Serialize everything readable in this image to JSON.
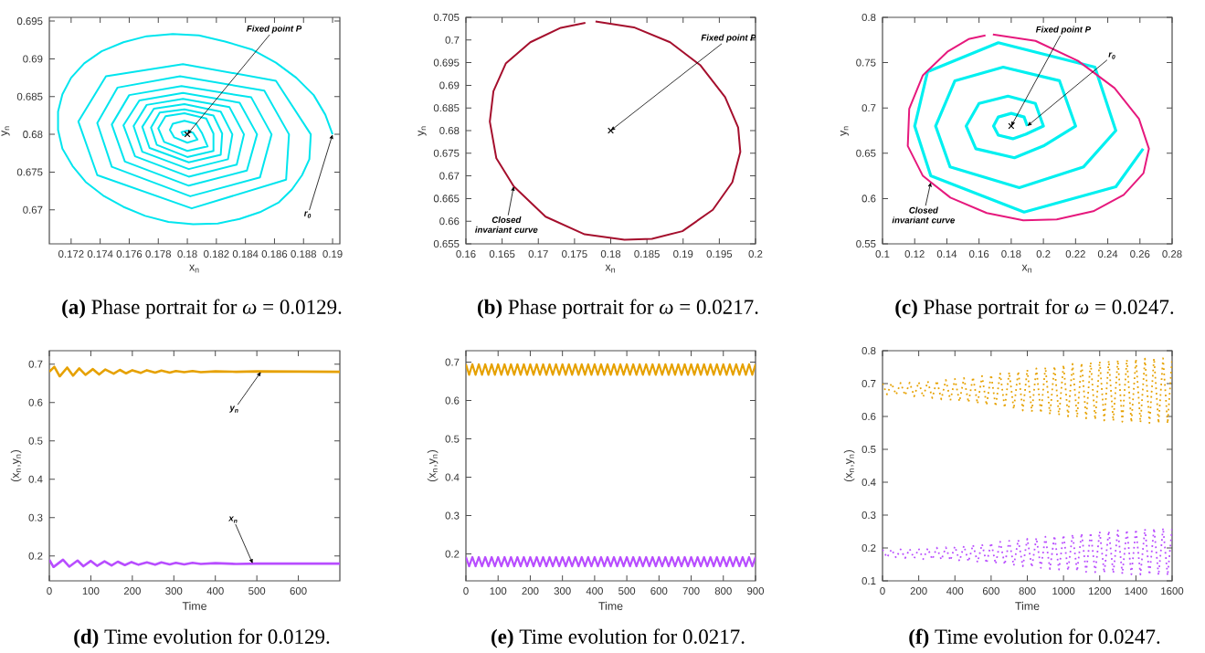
{
  "chart_data": [
    {
      "type": "line",
      "title": "**(a)** Phase portrait for *ω* = 0.0129.",
      "xlabel": "x$_{n}$",
      "ylabel": "y$_{n}$",
      "xlim": [
        0.1705,
        0.1905
      ],
      "ylim": [
        0.6655,
        0.6955
      ],
      "xticks": [
        0.172,
        0.174,
        0.176,
        0.178,
        0.18,
        0.182,
        0.184,
        0.186,
        0.188,
        0.19
      ],
      "yticks": [
        0.67,
        0.675,
        0.68,
        0.685,
        0.69,
        0.695
      ],
      "annotations": [
        {
          "text": "Fixed point P",
          "x": 0.18,
          "y": 0.68
        },
        {
          "text": "r$_{0}$",
          "x": 0.19,
          "y": 0.68
        }
      ],
      "series": [
        {
          "type": "scatter",
          "marker": "cross",
          "color": "#000000",
          "x": [
            0.18
          ],
          "values": [
            0.68
          ]
        },
        {
          "color": "#00e5ee",
          "x": [
            0.19,
            0.1895,
            0.1887,
            0.1875,
            0.1861,
            0.1845,
            0.1826,
            0.1808,
            0.179,
            0.1772,
            0.1756,
            0.1741,
            0.1729,
            0.172,
            0.1714,
            0.1711,
            0.1711,
            0.1714,
            0.1721,
            0.173,
            0.1742,
            0.1756,
            0.1771,
            0.1787,
            0.1804,
            0.1821,
            0.1836,
            0.185,
            0.1863,
            0.1872,
            0.1879,
            0.1884,
            0.1885,
            0.1861,
            0.1797,
            0.1744,
            0.1725,
            0.1738,
            0.1803,
            0.1868,
            0.187,
            0.1853,
            0.1795,
            0.1752,
            0.1738,
            0.1748,
            0.1802,
            0.185,
            0.1858,
            0.1844,
            0.1796,
            0.176,
            0.1748,
            0.1757,
            0.1801,
            0.1841,
            0.1848,
            0.1836,
            0.1797,
            0.1767,
            0.1756,
            0.1764,
            0.1801,
            0.1834,
            0.1839,
            0.1829,
            0.1797,
            0.1772,
            0.1763,
            0.1769,
            0.1801,
            0.1828,
            0.1831,
            0.1823,
            0.1798,
            0.1777,
            0.1769,
            0.1774,
            0.1801,
            0.1823,
            0.1824,
            0.1818,
            0.1798,
            0.1781,
            0.1775,
            0.1779,
            0.18,
            0.1818,
            0.1818,
            0.1813,
            0.1798,
            0.1785,
            0.178,
            0.1784,
            0.18,
            0.1814,
            0.181,
            0.1806,
            0.1798,
            0.179,
            0.1788,
            0.1791,
            0.18,
            0.1807,
            0.1804,
            0.18,
            0.1796,
            0.1797,
            0.18
          ],
          "values": [
            0.68,
            0.6826,
            0.6852,
            0.6875,
            0.6895,
            0.6912,
            0.6923,
            0.6931,
            0.6933,
            0.693,
            0.6922,
            0.691,
            0.6894,
            0.6875,
            0.6853,
            0.683,
            0.6806,
            0.6781,
            0.6758,
            0.6737,
            0.6719,
            0.6704,
            0.6692,
            0.6684,
            0.6681,
            0.6682,
            0.6688,
            0.6697,
            0.671,
            0.6727,
            0.6746,
            0.6767,
            0.68,
            0.6871,
            0.6893,
            0.6877,
            0.6817,
            0.6746,
            0.6702,
            0.674,
            0.68,
            0.6858,
            0.6877,
            0.6862,
            0.6815,
            0.6757,
            0.6718,
            0.6743,
            0.68,
            0.6849,
            0.6864,
            0.6852,
            0.6813,
            0.6764,
            0.6732,
            0.6752,
            0.68,
            0.6842,
            0.6855,
            0.6845,
            0.6812,
            0.6771,
            0.6744,
            0.676,
            0.68,
            0.6836,
            0.6847,
            0.6839,
            0.6811,
            0.6777,
            0.6754,
            0.6767,
            0.68,
            0.683,
            0.684,
            0.6834,
            0.681,
            0.6782,
            0.6763,
            0.6773,
            0.6801,
            0.6825,
            0.6833,
            0.6829,
            0.6809,
            0.6786,
            0.677,
            0.6778,
            0.6801,
            0.6821,
            0.6828,
            0.6824,
            0.6808,
            0.679,
            0.6778,
            0.6784,
            0.6802,
            0.6814,
            0.6818,
            0.6814,
            0.6806,
            0.6796,
            0.6789,
            0.6793,
            0.6802,
            0.6805,
            0.6803,
            0.6799,
            0.68
          ]
        }
      ]
    },
    {
      "type": "line",
      "title": "**(b)** Phase portrait for *ω* = 0.0217.",
      "xlabel": "x$_{n}$",
      "ylabel": "y$_{n}$",
      "xlim": [
        0.16,
        0.2
      ],
      "ylim": [
        0.655,
        0.705
      ],
      "xticks": [
        0.16,
        0.165,
        0.17,
        0.175,
        0.18,
        0.185,
        0.19,
        0.195,
        0.2
      ],
      "yticks": [
        0.655,
        0.66,
        0.665,
        0.67,
        0.675,
        0.68,
        0.685,
        0.69,
        0.695,
        0.7,
        0.705
      ],
      "annotations": [
        {
          "text": "Fixed point P",
          "x": 0.18,
          "y": 0.68
        },
        {
          "text": "Closed invariant curve",
          "x": 0.1666,
          "y": 0.6677
        }
      ],
      "series": [
        {
          "type": "scatter",
          "marker": "cross",
          "color": "#000000",
          "x": [
            0.18
          ],
          "values": [
            0.68
          ]
        },
        {
          "color": "#a50f2d",
          "x": [
            0.1779,
            0.1832,
            0.1882,
            0.1924,
            0.1958,
            0.1976,
            0.1979,
            0.1968,
            0.1941,
            0.1899,
            0.1857,
            0.1819,
            0.1764,
            0.171,
            0.1666,
            0.1642,
            0.1633,
            0.1638,
            0.1655,
            0.1689,
            0.1731,
            0.1765
          ],
          "values": [
            0.7041,
            0.7028,
            0.6995,
            0.6944,
            0.6874,
            0.6807,
            0.6753,
            0.6686,
            0.6625,
            0.6578,
            0.6561,
            0.6559,
            0.6571,
            0.661,
            0.6677,
            0.6739,
            0.682,
            0.6887,
            0.6948,
            0.6995,
            0.7027,
            0.7038
          ]
        }
      ]
    },
    {
      "type": "line",
      "title": "**(c)** Phase portrait for *ω* = 0.0247.",
      "xlabel": "x$_{n}$",
      "ylabel": "y$_{n}$",
      "xlim": [
        0.1,
        0.28
      ],
      "ylim": [
        0.55,
        0.8
      ],
      "xticks": [
        0.1,
        0.12,
        0.14,
        0.16,
        0.18,
        0.2,
        0.22,
        0.24,
        0.26,
        0.28
      ],
      "yticks": [
        0.55,
        0.6,
        0.65,
        0.7,
        0.75,
        0.8
      ],
      "annotations": [
        {
          "text": "Fixed point P",
          "x": 0.18,
          "y": 0.68
        },
        {
          "text": "r$_{0}$",
          "x": 0.19,
          "y": 0.68
        },
        {
          "text": "Closed invariant curve",
          "x": 0.13,
          "y": 0.618
        }
      ],
      "series": [
        {
          "type": "scatter",
          "marker": "cross",
          "color": "#000000",
          "x": [
            0.18
          ],
          "values": [
            0.68
          ]
        },
        {
          "color": "#00f0f0",
          "x": [
            0.19,
            0.188,
            0.18,
            0.172,
            0.169,
            0.172,
            0.181,
            0.189,
            0.2,
            0.195,
            0.178,
            0.16,
            0.152,
            0.158,
            0.182,
            0.2,
            0.22,
            0.21,
            0.175,
            0.145,
            0.133,
            0.142,
            0.185,
            0.225,
            0.245,
            0.232,
            0.172,
            0.128,
            0.12,
            0.13,
            0.188,
            0.245,
            0.262
          ],
          "values": [
            0.68,
            0.69,
            0.694,
            0.69,
            0.68,
            0.67,
            0.666,
            0.671,
            0.68,
            0.705,
            0.713,
            0.705,
            0.68,
            0.655,
            0.645,
            0.658,
            0.68,
            0.73,
            0.745,
            0.73,
            0.68,
            0.635,
            0.612,
            0.635,
            0.675,
            0.745,
            0.772,
            0.74,
            0.68,
            0.625,
            0.585,
            0.613,
            0.655
          ]
        },
        {
          "color": "#e6197d",
          "x": [
            0.1686,
            0.1951,
            0.2215,
            0.2442,
            0.2594,
            0.2656,
            0.2622,
            0.2499,
            0.231,
            0.2083,
            0.1875,
            0.1648,
            0.1422,
            0.1251,
            0.1157,
            0.1166,
            0.1251,
            0.1403,
            0.1535,
            0.164
          ],
          "values": [
            0.781,
            0.774,
            0.752,
            0.722,
            0.688,
            0.655,
            0.628,
            0.604,
            0.586,
            0.577,
            0.576,
            0.584,
            0.601,
            0.625,
            0.658,
            0.699,
            0.736,
            0.762,
            0.776,
            0.78
          ]
        }
      ]
    },
    {
      "type": "line",
      "title": "**(d)** Time evolution for 0.0129.",
      "xlabel": "Time",
      "ylabel": "(x$_{n}$,y$_{n}$)",
      "xlim": [
        0,
        700
      ],
      "ylim": [
        0.135,
        0.735
      ],
      "xticks": [
        0,
        100,
        200,
        300,
        400,
        500,
        600
      ],
      "yticks": [
        0.2,
        0.3,
        0.4,
        0.5,
        0.6,
        0.7
      ],
      "annotations": [
        {
          "text": "y$_{n}$",
          "x": 510,
          "y": 0.68
        },
        {
          "text": "x$_{n}$",
          "x": 490,
          "y": 0.18
        }
      ],
      "series": [
        {
          "color": "#e6a100",
          "x": [
            0,
            12,
            25,
            43,
            57,
            72,
            87,
            105,
            120,
            135,
            155,
            170,
            185,
            200,
            220,
            235,
            255,
            270,
            290,
            305,
            325,
            345,
            365,
            400,
            450,
            500,
            700
          ],
          "values": [
            0.68,
            0.693,
            0.668,
            0.691,
            0.67,
            0.689,
            0.672,
            0.687,
            0.673,
            0.686,
            0.675,
            0.685,
            0.676,
            0.684,
            0.677,
            0.684,
            0.678,
            0.683,
            0.678,
            0.682,
            0.679,
            0.682,
            0.679,
            0.681,
            0.68,
            0.681,
            0.68
          ]
        },
        {
          "color": "#b84dff",
          "x": [
            0,
            10,
            33,
            48,
            68,
            82,
            100,
            115,
            133,
            150,
            165,
            182,
            198,
            215,
            235,
            255,
            270,
            290,
            305,
            325,
            345,
            365,
            400,
            450,
            500,
            700
          ],
          "values": [
            0.19,
            0.171,
            0.19,
            0.172,
            0.188,
            0.173,
            0.187,
            0.174,
            0.186,
            0.175,
            0.185,
            0.176,
            0.184,
            0.177,
            0.183,
            0.177,
            0.183,
            0.178,
            0.182,
            0.178,
            0.182,
            0.179,
            0.181,
            0.179,
            0.18,
            0.18
          ]
        }
      ]
    },
    {
      "type": "line",
      "title": "**(e)** Time evolution for 0.0217.",
      "xlabel": "Time",
      "ylabel": "(x$_{n}$,y$_{n}$)",
      "xlim": [
        0,
        900
      ],
      "ylim": [
        0.13,
        0.73
      ],
      "xticks": [
        0,
        100,
        200,
        300,
        400,
        500,
        600,
        700,
        800,
        900
      ],
      "yticks": [
        0.2,
        0.3,
        0.4,
        0.5,
        0.6,
        0.7
      ],
      "x": [
        0,
        10,
        20,
        30,
        40,
        50,
        60,
        70,
        80,
        90,
        100,
        110,
        120,
        130,
        140,
        150,
        160,
        170,
        180,
        190,
        200,
        210,
        220,
        230,
        240,
        250,
        260,
        270,
        280,
        290,
        300,
        310,
        320,
        330,
        340,
        350,
        360,
        370,
        380,
        390,
        400,
        410,
        420,
        430,
        440,
        450,
        460,
        470,
        480,
        490,
        500,
        510,
        520,
        530,
        540,
        550,
        560,
        570,
        580,
        590,
        600,
        610,
        620,
        630,
        640,
        650,
        660,
        670,
        680,
        690,
        700,
        710,
        720,
        730,
        740,
        750,
        760,
        770,
        780,
        790,
        800,
        810,
        820,
        830,
        840,
        850,
        860,
        870,
        880,
        890,
        900
      ],
      "series": [
        {
          "color": "#e6a100",
          "values": [
            0.695,
            0.667,
            0.695,
            0.667,
            0.695,
            0.667,
            0.695,
            0.667,
            0.695,
            0.667,
            0.695,
            0.667,
            0.695,
            0.667,
            0.695,
            0.667,
            0.695,
            0.667,
            0.695,
            0.667,
            0.695,
            0.667,
            0.695,
            0.667,
            0.695,
            0.667,
            0.695,
            0.667,
            0.695,
            0.667,
            0.695,
            0.667,
            0.695,
            0.667,
            0.695,
            0.667,
            0.695,
            0.667,
            0.695,
            0.667,
            0.695,
            0.667,
            0.695,
            0.667,
            0.695,
            0.667,
            0.695,
            0.667,
            0.695,
            0.667,
            0.695,
            0.667,
            0.695,
            0.667,
            0.695,
            0.667,
            0.695,
            0.667,
            0.695,
            0.667,
            0.695,
            0.667,
            0.695,
            0.667,
            0.695,
            0.667,
            0.695,
            0.667,
            0.695,
            0.667,
            0.695,
            0.667,
            0.695,
            0.667,
            0.695,
            0.667,
            0.695,
            0.667,
            0.695,
            0.667,
            0.695,
            0.667,
            0.695,
            0.667,
            0.695,
            0.667,
            0.695,
            0.667,
            0.695,
            0.667,
            0.695
          ]
        },
        {
          "color": "#b84dff",
          "values": [
            0.192,
            0.168,
            0.192,
            0.168,
            0.192,
            0.168,
            0.192,
            0.168,
            0.192,
            0.168,
            0.192,
            0.168,
            0.192,
            0.168,
            0.192,
            0.168,
            0.192,
            0.168,
            0.192,
            0.168,
            0.192,
            0.168,
            0.192,
            0.168,
            0.192,
            0.168,
            0.192,
            0.168,
            0.192,
            0.168,
            0.192,
            0.168,
            0.192,
            0.168,
            0.192,
            0.168,
            0.192,
            0.168,
            0.192,
            0.168,
            0.192,
            0.168,
            0.192,
            0.168,
            0.192,
            0.168,
            0.192,
            0.168,
            0.192,
            0.168,
            0.192,
            0.168,
            0.192,
            0.168,
            0.192,
            0.168,
            0.192,
            0.168,
            0.192,
            0.168,
            0.192,
            0.168,
            0.192,
            0.168,
            0.192,
            0.168,
            0.192,
            0.168,
            0.192,
            0.168,
            0.192,
            0.168,
            0.192,
            0.168,
            0.192,
            0.168,
            0.192,
            0.168,
            0.192,
            0.168,
            0.192,
            0.168,
            0.192,
            0.168,
            0.192,
            0.168,
            0.192,
            0.168,
            0.192,
            0.168,
            0.192
          ]
        }
      ]
    },
    {
      "type": "line",
      "line_style": "dotted",
      "title": "**(f)** Time evolution for 0.0247.",
      "xlabel": "Time",
      "ylabel": "(x$_{n}$,y$_{n}$)",
      "xlim": [
        0,
        1600
      ],
      "ylim": [
        0.1,
        0.8
      ],
      "xticks": [
        0,
        200,
        400,
        600,
        800,
        1000,
        1200,
        1400,
        1600
      ],
      "yticks": [
        0.1,
        0.2,
        0.3,
        0.4,
        0.5,
        0.6,
        0.7,
        0.8
      ],
      "x": [
        0,
        25,
        50,
        75,
        100,
        125,
        150,
        175,
        200,
        225,
        250,
        275,
        300,
        325,
        350,
        375,
        400,
        425,
        450,
        475,
        500,
        525,
        550,
        575,
        600,
        625,
        650,
        675,
        700,
        725,
        750,
        775,
        800,
        825,
        850,
        875,
        900,
        925,
        950,
        975,
        1000,
        1025,
        1050,
        1075,
        1100,
        1125,
        1150,
        1175,
        1200,
        1225,
        1250,
        1275,
        1300,
        1325,
        1350,
        1375,
        1400,
        1425,
        1450,
        1475,
        1500,
        1525,
        1550,
        1575,
        1600
      ],
      "series": [
        {
          "color": "#e6a100",
          "values": [
            0.7,
            0.667,
            0.701,
            0.666,
            0.702,
            0.664,
            0.703,
            0.661,
            0.705,
            0.659,
            0.707,
            0.656,
            0.709,
            0.652,
            0.711,
            0.649,
            0.714,
            0.645,
            0.717,
            0.642,
            0.72,
            0.638,
            0.723,
            0.634,
            0.727,
            0.63,
            0.731,
            0.626,
            0.735,
            0.622,
            0.738,
            0.618,
            0.742,
            0.614,
            0.746,
            0.61,
            0.75,
            0.606,
            0.753,
            0.603,
            0.757,
            0.6,
            0.76,
            0.597,
            0.763,
            0.594,
            0.765,
            0.59,
            0.768,
            0.588,
            0.77,
            0.586,
            0.772,
            0.584,
            0.773,
            0.582,
            0.775,
            0.581,
            0.776,
            0.58,
            0.777,
            0.579,
            0.777,
            0.578,
            0.778
          ]
        },
        {
          "color": "#b84dff",
          "values": [
            0.195,
            0.171,
            0.196,
            0.17,
            0.196,
            0.169,
            0.197,
            0.168,
            0.198,
            0.166,
            0.199,
            0.165,
            0.201,
            0.164,
            0.202,
            0.162,
            0.205,
            0.16,
            0.207,
            0.158,
            0.21,
            0.156,
            0.212,
            0.153,
            0.216,
            0.151,
            0.219,
            0.149,
            0.222,
            0.146,
            0.225,
            0.144,
            0.228,
            0.141,
            0.231,
            0.139,
            0.234,
            0.136,
            0.237,
            0.134,
            0.24,
            0.131,
            0.242,
            0.129,
            0.245,
            0.127,
            0.247,
            0.126,
            0.25,
            0.124,
            0.252,
            0.123,
            0.254,
            0.121,
            0.255,
            0.12,
            0.257,
            0.119,
            0.258,
            0.118,
            0.26,
            0.117,
            0.261,
            0.116,
            0.262
          ]
        }
      ]
    }
  ]
}
